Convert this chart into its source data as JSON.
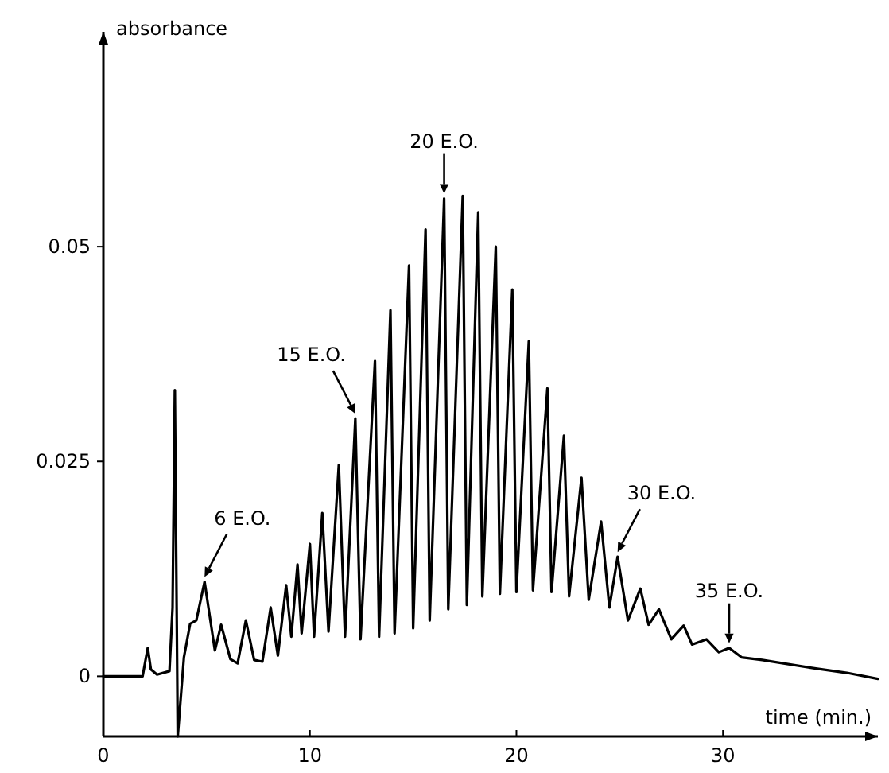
{
  "chart_data": {
    "type": "line",
    "ylabel": "absorbance",
    "xlabel": "time (min.)",
    "x": [
      0,
      1.9,
      2.05,
      2.15,
      2.3,
      2.6,
      3.2,
      3.35,
      3.46,
      3.6,
      3.9,
      4.2,
      4.5,
      4.9,
      5.4,
      5.7,
      6.15,
      6.5,
      6.9,
      7.3,
      7.7,
      8.1,
      8.45,
      8.85,
      9.1,
      9.4,
      9.6,
      10.0,
      10.2,
      10.6,
      10.9,
      11.4,
      11.7,
      12.2,
      12.45,
      13.15,
      13.35,
      13.9,
      14.1,
      14.8,
      15.0,
      15.6,
      15.8,
      16.5,
      16.7,
      17.4,
      17.6,
      18.15,
      18.35,
      19.0,
      19.2,
      19.8,
      20.0,
      20.6,
      20.8,
      21.5,
      21.7,
      22.3,
      22.55,
      23.15,
      23.5,
      24.1,
      24.5,
      24.9,
      25.4,
      26.0,
      26.4,
      26.9,
      27.5,
      28.1,
      28.5,
      29.2,
      29.8,
      30.3,
      30.9,
      31.9,
      34.5,
      36,
      37.5
    ],
    "series": [
      {
        "color": "#000000",
        "values": [
          0,
          0,
          0.002,
          0.0033,
          0.0008,
          0.0002,
          0.0006,
          0.008,
          0.0333,
          -0.007,
          0.0022,
          0.0061,
          0.0065,
          0.011,
          0.003,
          0.006,
          0.002,
          0.0015,
          0.0065,
          0.0019,
          0.0017,
          0.008,
          0.0024,
          0.0106,
          0.0046,
          0.013,
          0.005,
          0.0154,
          0.0046,
          0.019,
          0.0052,
          0.0246,
          0.0046,
          0.03,
          0.0043,
          0.0367,
          0.0046,
          0.0426,
          0.005,
          0.0478,
          0.0056,
          0.052,
          0.0065,
          0.0556,
          0.0078,
          0.0559,
          0.0083,
          0.054,
          0.0093,
          0.05,
          0.0096,
          0.045,
          0.0098,
          0.039,
          0.01,
          0.0335,
          0.0098,
          0.028,
          0.0093,
          0.0231,
          0.0089,
          0.018,
          0.008,
          0.0139,
          0.0065,
          0.0102,
          0.006,
          0.0078,
          0.0043,
          0.0059,
          0.0037,
          0.0043,
          0.0028,
          0.0033,
          0.0022,
          0.0019,
          0.0009,
          0.0004,
          -0.0003
        ]
      }
    ],
    "xlim": [
      0,
      37.5
    ],
    "ylim": [
      -0.007,
      0.075
    ],
    "xticks": [
      0,
      10,
      20,
      30
    ],
    "yticks": [
      0,
      0.025,
      0.05
    ],
    "annotations": [
      {
        "text": "6 E.O.",
        "x": 4.9,
        "y": 0.011
      },
      {
        "text": "15 E.O.",
        "x": 12.2,
        "y": 0.03
      },
      {
        "text": "20 E.O.",
        "x": 16.5,
        "y": 0.0556
      },
      {
        "text": "30 E.O.",
        "x": 24.9,
        "y": 0.0139
      },
      {
        "text": "35 E.O.",
        "x": 30.3,
        "y": 0.0033
      }
    ],
    "grid": false,
    "marker": "none",
    "line_style": "solid"
  }
}
